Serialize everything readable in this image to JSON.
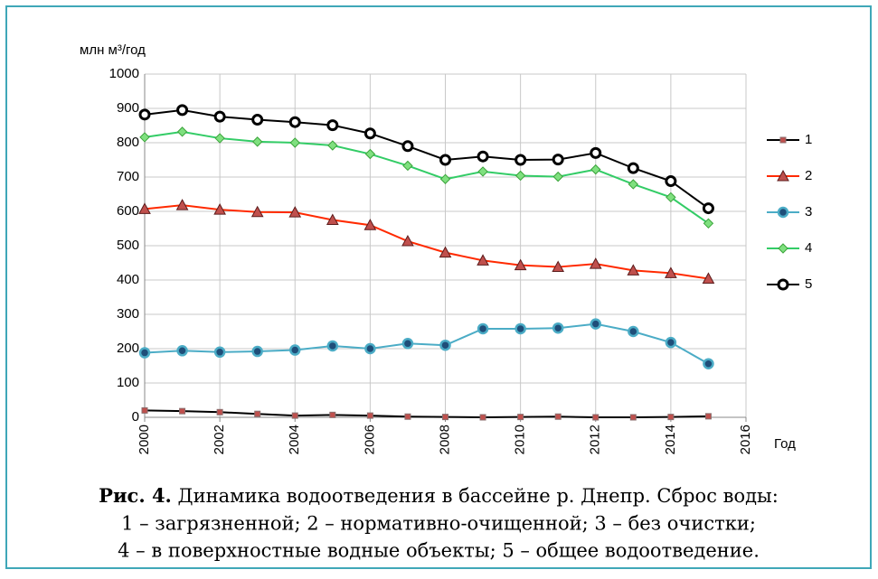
{
  "chart_data": {
    "type": "line",
    "y_label": "млн м³/год",
    "x_label": "Год",
    "x": [
      2000,
      2001,
      2002,
      2003,
      2004,
      2005,
      2006,
      2007,
      2008,
      2009,
      2010,
      2011,
      2012,
      2013,
      2014,
      2015
    ],
    "xlim": [
      2000,
      2016
    ],
    "xticks": [
      2000,
      2002,
      2004,
      2006,
      2008,
      2010,
      2012,
      2014,
      2016
    ],
    "ylim": [
      0,
      1000
    ],
    "yticks": [
      0,
      100,
      200,
      300,
      400,
      500,
      600,
      700,
      800,
      900,
      1000
    ],
    "grid": true,
    "legend": "right",
    "series": [
      {
        "name": "1",
        "color": "#000000",
        "marker": "square",
        "marker_fill": "#c0504d",
        "values": [
          20,
          18,
          15,
          10,
          5,
          7,
          5,
          2,
          1,
          0,
          1,
          2,
          0,
          0,
          1,
          3
        ]
      },
      {
        "name": "2",
        "color": "#ff2a00",
        "marker": "triangle",
        "marker_fill": "#c0504d",
        "values": [
          607,
          618,
          605,
          598,
          597,
          575,
          560,
          513,
          480,
          457,
          443,
          438,
          447,
          428,
          420,
          404
        ]
      },
      {
        "name": "3",
        "color": "#4bacc6",
        "marker": "circle",
        "marker_fill": "#1f4e79",
        "values": [
          188,
          194,
          190,
          192,
          196,
          208,
          200,
          215,
          210,
          258,
          258,
          260,
          272,
          250,
          218,
          156
        ]
      },
      {
        "name": "4",
        "color": "#33cc66",
        "marker": "diamond",
        "marker_fill": "#7fe07f",
        "values": [
          816,
          832,
          813,
          803,
          800,
          792,
          767,
          733,
          694,
          716,
          704,
          701,
          722,
          679,
          641,
          565
        ]
      },
      {
        "name": "5",
        "color": "#000000",
        "marker": "ring",
        "marker_fill": "#ffffff",
        "values": [
          882,
          895,
          876,
          867,
          860,
          851,
          827,
          790,
          750,
          760,
          750,
          751,
          770,
          726,
          688,
          609
        ]
      }
    ]
  },
  "caption": {
    "label": "Рис. 4.",
    "lines": [
      " Динамика водоотведения в бассейне р. Днепр. Сброс воды:",
      "1 – загрязненной; 2 – нормативно-очищенной; 3 – без очистки;",
      "4 – в поверхностные водные объекты; 5 – общее водоотведение."
    ]
  }
}
